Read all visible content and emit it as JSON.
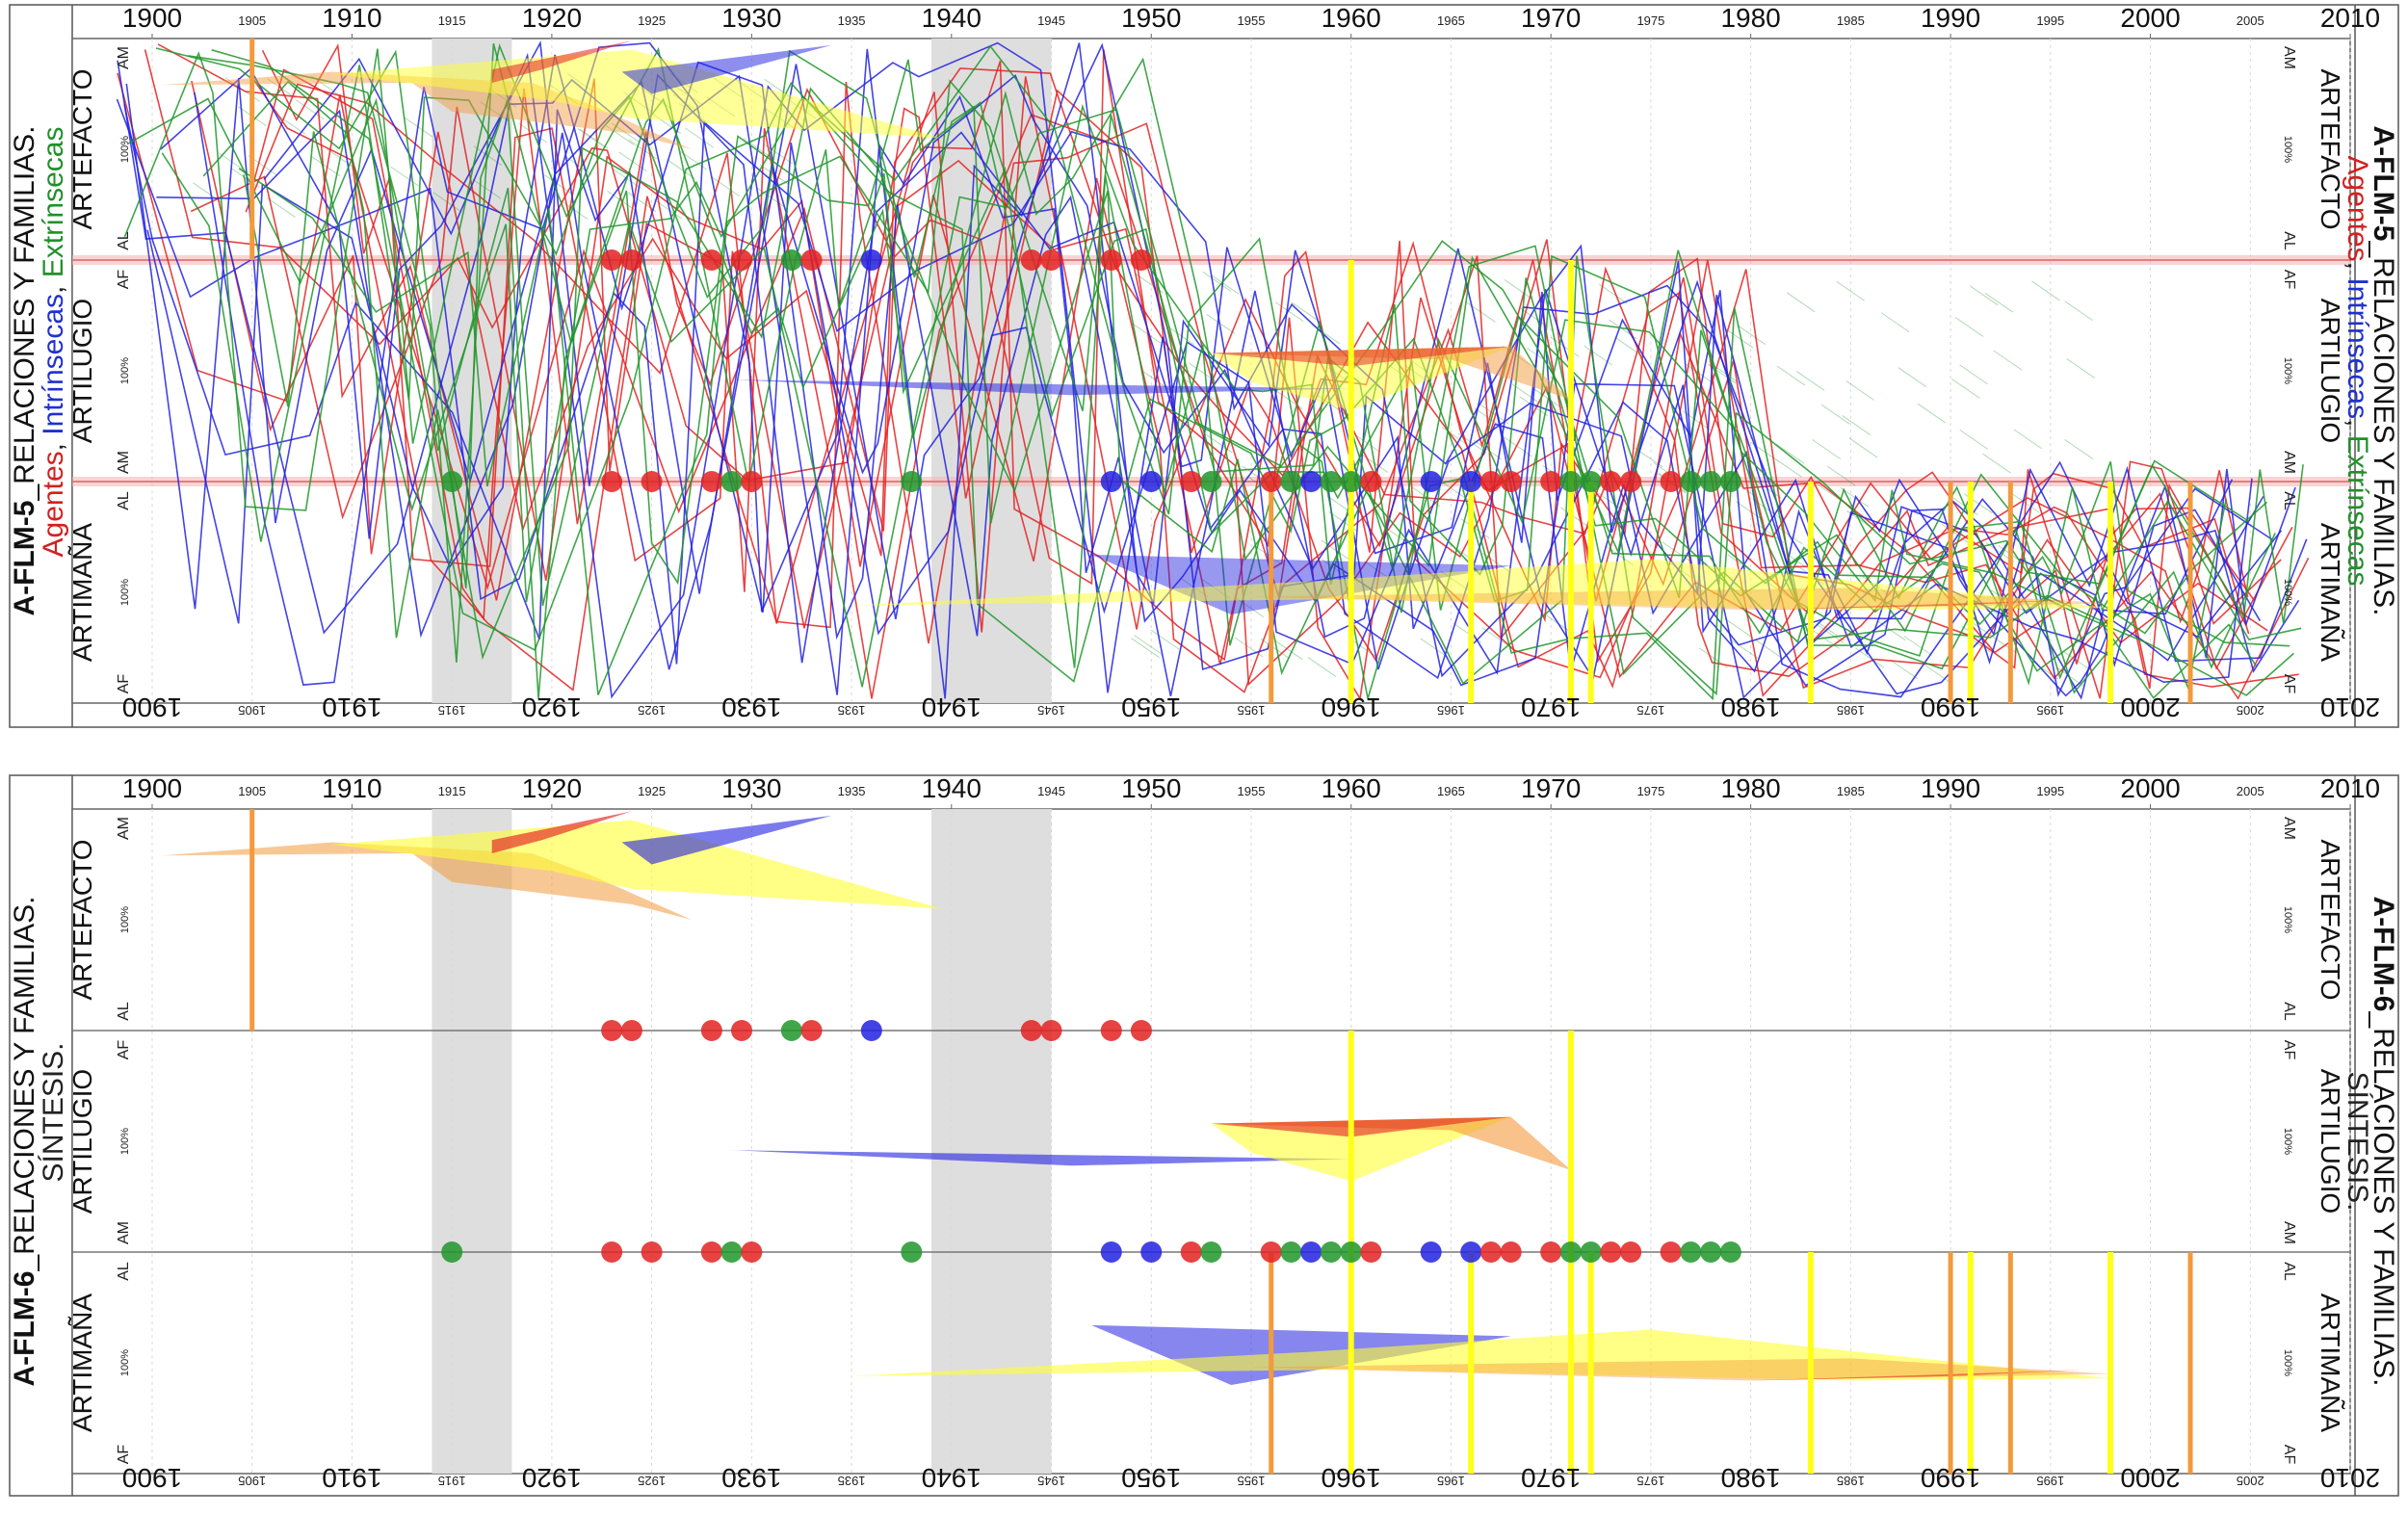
{
  "panels": [
    {
      "id": "A-FLM-5",
      "code": "A-FLM-5",
      "title_rest": "_RELACIONES Y FAMILIAS.",
      "subtitle_parts": [
        {
          "text": "Agentes",
          "color": "#d42020"
        },
        {
          "text": ", ",
          "color": "#222222"
        },
        {
          "text": "Intrínsecas",
          "color": "#2030d0"
        },
        {
          "text": ", ",
          "color": "#222222"
        },
        {
          "text": "Extrínsecas",
          "color": "#20902a"
        }
      ]
    },
    {
      "id": "A-FLM-6",
      "code": "A-FLM-6",
      "title_rest": "_RELACIONES Y FAMILIAS.",
      "subtitle_parts": [
        {
          "text": "SÍNTESIS.",
          "color": "#222222"
        }
      ]
    }
  ],
  "bands": [
    {
      "label": "ARTEFACTO",
      "top_tick": "AM",
      "mid_tick": "100%",
      "bottom_tick": "AL"
    },
    {
      "label": "ARTILUGIO",
      "top_tick": "AF",
      "mid_tick": "100%",
      "bottom_tick": "AM"
    },
    {
      "label": "ARTIMAÑA",
      "top_tick": "AL",
      "mid_tick": "100%",
      "bottom_tick": "AF"
    }
  ],
  "colors": {
    "agentes": "#e32222",
    "intrinsecas": "#2222e0",
    "extrinsecas": "#20962a",
    "yellow_marker": "#ffff1a",
    "orange_marker": "#f39a3c",
    "grey_period": "#dcdcdc",
    "band_line": "#e08080"
  },
  "chart_data": {
    "type": "timeline",
    "x_major_ticks": [
      "1900",
      "1910",
      "1920",
      "1930",
      "1940",
      "1950",
      "1960",
      "1970",
      "1980",
      "1990",
      "2000",
      "2010"
    ],
    "x_minor_ticks": [
      "1905",
      "1915",
      "1925",
      "1935",
      "1945",
      "1955",
      "1965",
      "1975",
      "1985",
      "1995",
      "2005"
    ],
    "xlim": [
      1896,
      2010
    ],
    "grey_periods": [
      [
        1914,
        1918
      ],
      [
        1939,
        1945
      ]
    ],
    "yellow_markers": [
      1960,
      1966,
      1971,
      1972,
      1983,
      1991,
      1998
    ],
    "orange_markers": [
      1905,
      1956,
      1990,
      1993,
      2002
    ],
    "dots_AL_AF": [
      {
        "year": 1923,
        "group": "agentes"
      },
      {
        "year": 1924,
        "group": "agentes"
      },
      {
        "year": 1928,
        "group": "agentes"
      },
      {
        "year": 1929.5,
        "group": "agentes"
      },
      {
        "year": 1932,
        "group": "extrinsecas"
      },
      {
        "year": 1933,
        "group": "agentes"
      },
      {
        "year": 1936,
        "group": "intrinsecas"
      },
      {
        "year": 1944,
        "group": "agentes"
      },
      {
        "year": 1945,
        "group": "agentes"
      },
      {
        "year": 1948,
        "group": "agentes"
      },
      {
        "year": 1949.5,
        "group": "agentes"
      }
    ],
    "dots_AM_AL": [
      {
        "year": 1915,
        "group": "extrinsecas"
      },
      {
        "year": 1923,
        "group": "agentes"
      },
      {
        "year": 1925,
        "group": "agentes"
      },
      {
        "year": 1928,
        "group": "agentes"
      },
      {
        "year": 1929,
        "group": "extrinsecas"
      },
      {
        "year": 1930,
        "group": "agentes"
      },
      {
        "year": 1938,
        "group": "extrinsecas"
      },
      {
        "year": 1948,
        "group": "intrinsecas"
      },
      {
        "year": 1950,
        "group": "intrinsecas"
      },
      {
        "year": 1952,
        "group": "agentes"
      },
      {
        "year": 1953,
        "group": "extrinsecas"
      },
      {
        "year": 1956,
        "group": "agentes"
      },
      {
        "year": 1957,
        "group": "extrinsecas"
      },
      {
        "year": 1958,
        "group": "intrinsecas"
      },
      {
        "year": 1959,
        "group": "extrinsecas"
      },
      {
        "year": 1960,
        "group": "extrinsecas"
      },
      {
        "year": 1961,
        "group": "agentes"
      },
      {
        "year": 1964,
        "group": "intrinsecas"
      },
      {
        "year": 1966,
        "group": "intrinsecas"
      },
      {
        "year": 1967,
        "group": "agentes"
      },
      {
        "year": 1968,
        "group": "agentes"
      },
      {
        "year": 1970,
        "group": "agentes"
      },
      {
        "year": 1971,
        "group": "extrinsecas"
      },
      {
        "year": 1972,
        "group": "extrinsecas"
      },
      {
        "year": 1973,
        "group": "agentes"
      },
      {
        "year": 1974,
        "group": "agentes"
      },
      {
        "year": 1976,
        "group": "agentes"
      },
      {
        "year": 1977,
        "group": "extrinsecas"
      },
      {
        "year": 1978,
        "group": "extrinsecas"
      },
      {
        "year": 1979,
        "group": "extrinsecas"
      }
    ],
    "synthesis_shapes": [
      {
        "group": "orange_wedge",
        "color": "#f39a3c",
        "opacity": 0.55,
        "points": [
          [
            1900.5,
            0.21
          ],
          [
            1913,
            0.2
          ],
          [
            1915,
            0.33
          ],
          [
            1924,
            0.43
          ],
          [
            1927,
            0.5
          ],
          [
            1922,
            0.3
          ],
          [
            1919,
            0.2
          ],
          [
            1909,
            0.15
          ]
        ]
      },
      {
        "group": "yellow_wedge",
        "color": "#ffff33",
        "opacity": 0.6,
        "points": [
          [
            1909,
            0.16
          ],
          [
            1914.5,
            0.12
          ],
          [
            1924,
            0.05
          ],
          [
            1939.5,
            0.45
          ],
          [
            1924,
            0.36
          ],
          [
            1920,
            0.28
          ]
        ]
      },
      {
        "group": "red_wedge",
        "color": "#e32222",
        "opacity": 0.65,
        "points": [
          [
            1917,
            0.14
          ],
          [
            1924,
            0.01
          ],
          [
            1919.5,
            0.14
          ],
          [
            1917,
            0.2
          ]
        ]
      },
      {
        "group": "blue_wedge",
        "color": "#2222e0",
        "opacity": 0.6,
        "points": [
          [
            1923.5,
            0.15
          ],
          [
            1934,
            0.03
          ],
          [
            1925,
            0.25
          ]
        ]
      },
      {
        "group": "blue_artilugio",
        "color": "#2222e0",
        "opacity": 0.6,
        "points": [
          [
            1929,
            1.54
          ],
          [
            1960,
            1.58
          ],
          [
            1946,
            1.61
          ]
        ]
      },
      {
        "group": "yellow_artilugio",
        "color": "#ffff33",
        "opacity": 0.6,
        "points": [
          [
            1953,
            1.42
          ],
          [
            1968,
            1.39
          ],
          [
            1960,
            1.68
          ],
          [
            1955,
            1.55
          ]
        ]
      },
      {
        "group": "orange_artilugio",
        "color": "#f39a3c",
        "opacity": 0.6,
        "points": [
          [
            1953,
            1.42
          ],
          [
            1968,
            1.39
          ],
          [
            1971,
            1.63
          ],
          [
            1965,
            1.45
          ]
        ]
      },
      {
        "group": "red_artilugio",
        "color": "#e32222",
        "opacity": 0.6,
        "points": [
          [
            1953,
            1.42
          ],
          [
            1968,
            1.39
          ],
          [
            1960,
            1.48
          ]
        ]
      },
      {
        "group": "blue_artimana",
        "color": "#2222e0",
        "opacity": 0.55,
        "points": [
          [
            1947,
            2.33
          ],
          [
            1968,
            2.38
          ],
          [
            1954,
            2.6
          ]
        ]
      },
      {
        "group": "yellow_artimana",
        "color": "#ffff33",
        "opacity": 0.6,
        "points": [
          [
            1935,
            2.56
          ],
          [
            1958,
            2.45
          ],
          [
            1975,
            2.35
          ],
          [
            1980,
            2.4
          ],
          [
            1998,
            2.57
          ],
          [
            1985,
            2.58
          ],
          [
            1960,
            2.53
          ]
        ]
      },
      {
        "group": "orange_artimana",
        "color": "#f39a3c",
        "opacity": 0.45,
        "points": [
          [
            1955,
            2.52
          ],
          [
            1985,
            2.48
          ],
          [
            1998,
            2.55
          ],
          [
            1980,
            2.58
          ]
        ]
      },
      {
        "group": "red_artimana",
        "color": "#e32222",
        "opacity": 0.55,
        "points": [
          [
            1980,
            2.58
          ],
          [
            1994,
            2.54
          ],
          [
            1997,
            2.53
          ],
          [
            1990,
            2.56
          ]
        ]
      }
    ]
  }
}
